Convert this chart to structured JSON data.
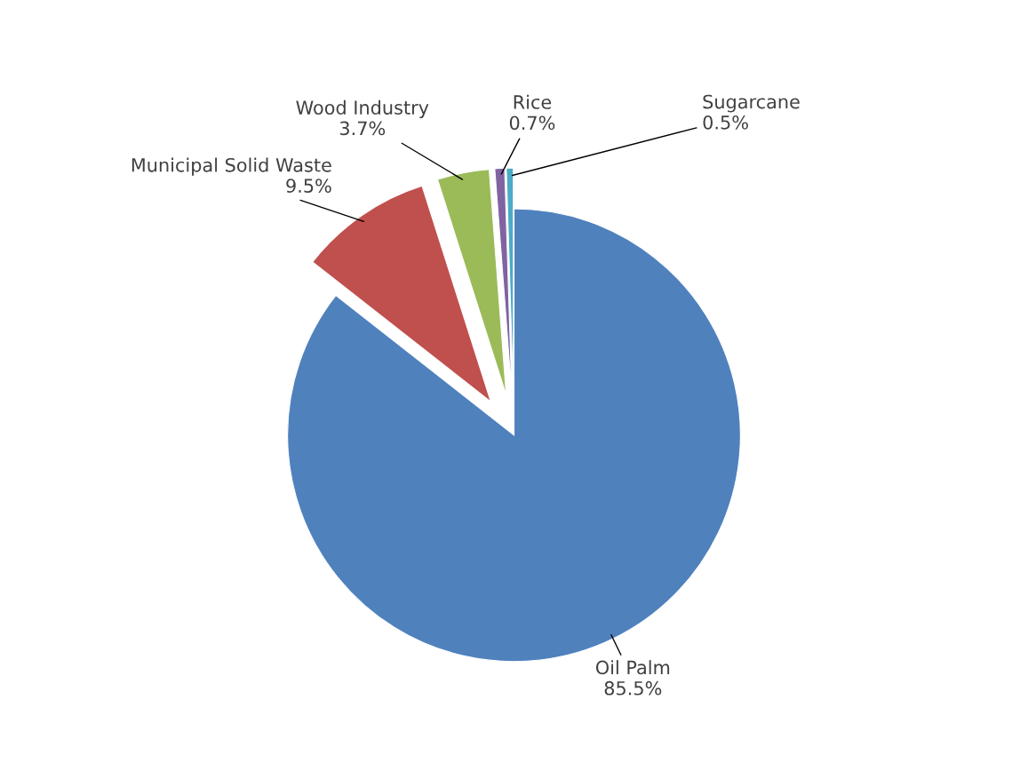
{
  "chart_data": {
    "type": "pie",
    "categories": [
      "Oil Palm",
      "Municipal Solid Waste",
      "Wood Industry",
      "Rice",
      "Sugarcane"
    ],
    "values": [
      85.5,
      9.5,
      3.7,
      0.7,
      0.5
    ],
    "colors": [
      "#4f81bd",
      "#c0504d",
      "#9bbb59",
      "#8064a2",
      "#4bacc6"
    ],
    "value_labels": [
      "85.5%",
      "9.5%",
      "3.7%",
      "0.7%",
      "0.5%"
    ],
    "legend": false
  }
}
